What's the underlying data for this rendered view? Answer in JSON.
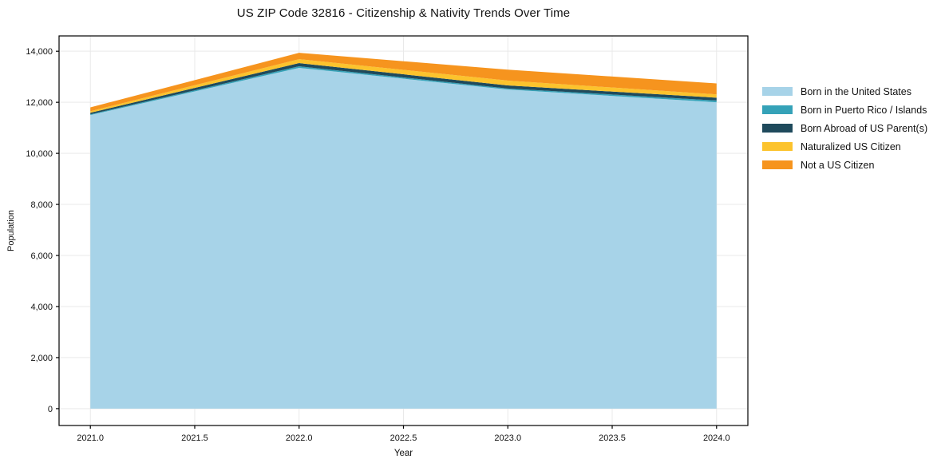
{
  "chart_data": {
    "type": "area",
    "stacked": true,
    "title": "US ZIP Code 32816 - Citizenship & Nativity Trends Over Time",
    "xlabel": "Year",
    "ylabel": "Population",
    "x": [
      2021,
      2022,
      2023,
      2024
    ],
    "series": [
      {
        "name": "Born in the United States",
        "color": "#a7d3e8",
        "values": [
          11500,
          13350,
          12500,
          12000
        ]
      },
      {
        "name": "Born in Puerto Rico / Islands",
        "color": "#35a2b8",
        "values": [
          30,
          60,
          40,
          70
        ]
      },
      {
        "name": "Born Abroad of US Parent(s)",
        "color": "#1f4a5c",
        "values": [
          60,
          125,
          120,
          110
        ]
      },
      {
        "name": "Naturalized US Citizen",
        "color": "#fcc32d",
        "values": [
          60,
          155,
          190,
          130
        ]
      },
      {
        "name": "Not a US Citizen",
        "color": "#f6941e",
        "values": [
          150,
          250,
          430,
          430
        ]
      }
    ],
    "totals": [
      11800,
      13940,
      13280,
      12740
    ],
    "x_ticks": [
      2021.0,
      2021.5,
      2022.0,
      2022.5,
      2023.0,
      2023.5,
      2024.0
    ],
    "x_tick_labels": [
      "2021.0",
      "2021.5",
      "2022.0",
      "2022.5",
      "2023.0",
      "2023.5",
      "2024.0"
    ],
    "y_ticks": [
      0,
      2000,
      4000,
      6000,
      8000,
      10000,
      12000,
      14000
    ],
    "y_tick_labels": [
      "0",
      "2,000",
      "4,000",
      "6,000",
      "8,000",
      "10,000",
      "12,000",
      "14,000"
    ],
    "xlim": [
      2020.85,
      2024.15
    ],
    "ylim": [
      -660,
      14600
    ],
    "grid": true,
    "grid_color": "#e9e9e9",
    "axis_color": "#000000",
    "legend_position": "right-outside"
  }
}
